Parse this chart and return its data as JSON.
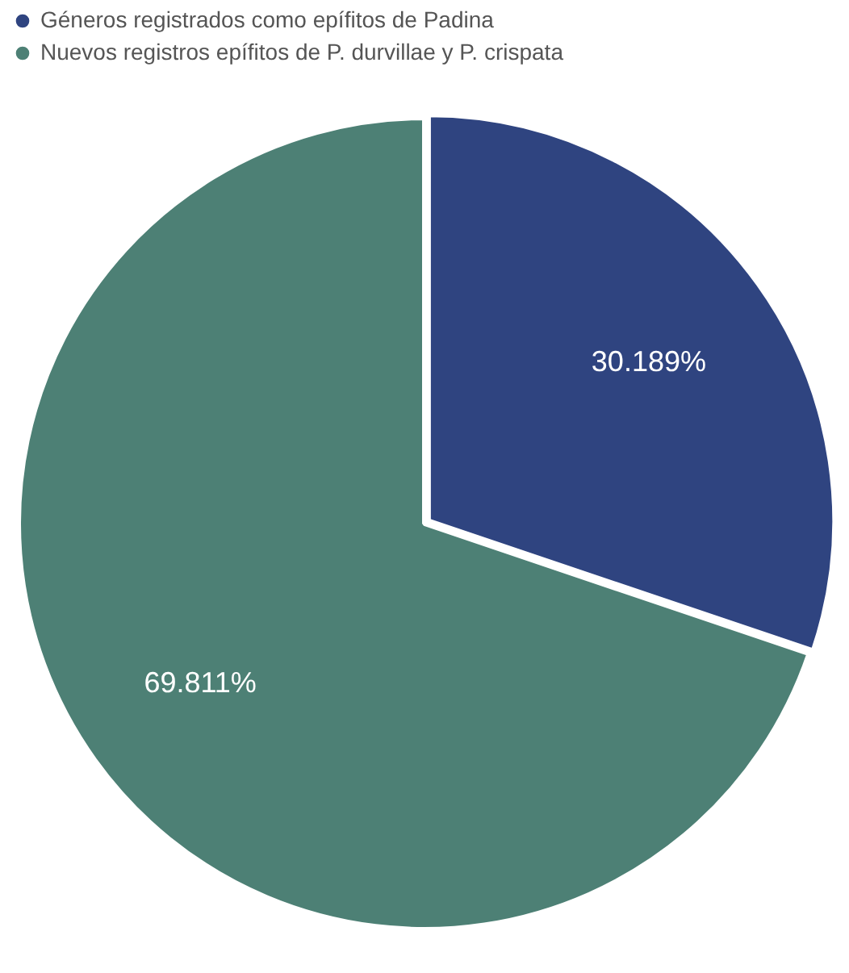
{
  "chart_data": {
    "type": "pie",
    "categories": [
      "Géneros registrados como epífitos de Padina",
      "Nuevos registros epífitos de P. durvillae y P. crispata"
    ],
    "values": [
      30.189,
      69.811
    ],
    "colors": [
      "#2f4480",
      "#4d8075"
    ],
    "value_labels": [
      "30.189%",
      "69.811%"
    ],
    "legend": "top left"
  }
}
